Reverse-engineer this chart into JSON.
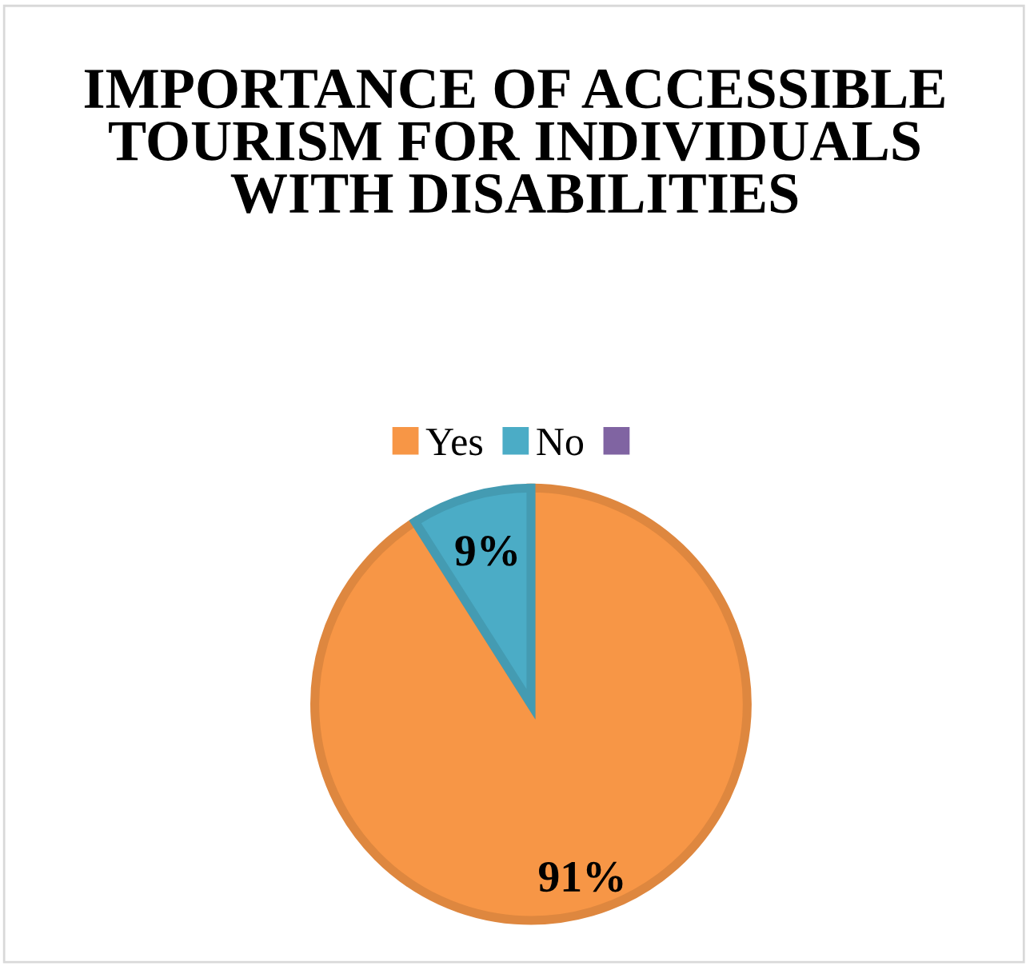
{
  "chart_data": {
    "type": "pie",
    "title": "IMPORTANCE OF ACCESSIBLE TOURISM FOR INDIVIDUALS WITH DISABILITIES",
    "categories": [
      "Yes",
      "No",
      null
    ],
    "values": [
      91,
      9,
      0
    ],
    "colors": [
      "#f79646",
      "#4bacc6",
      "#8064a2"
    ],
    "value_labels": [
      "91%",
      "9%",
      null
    ],
    "legend": "top"
  }
}
